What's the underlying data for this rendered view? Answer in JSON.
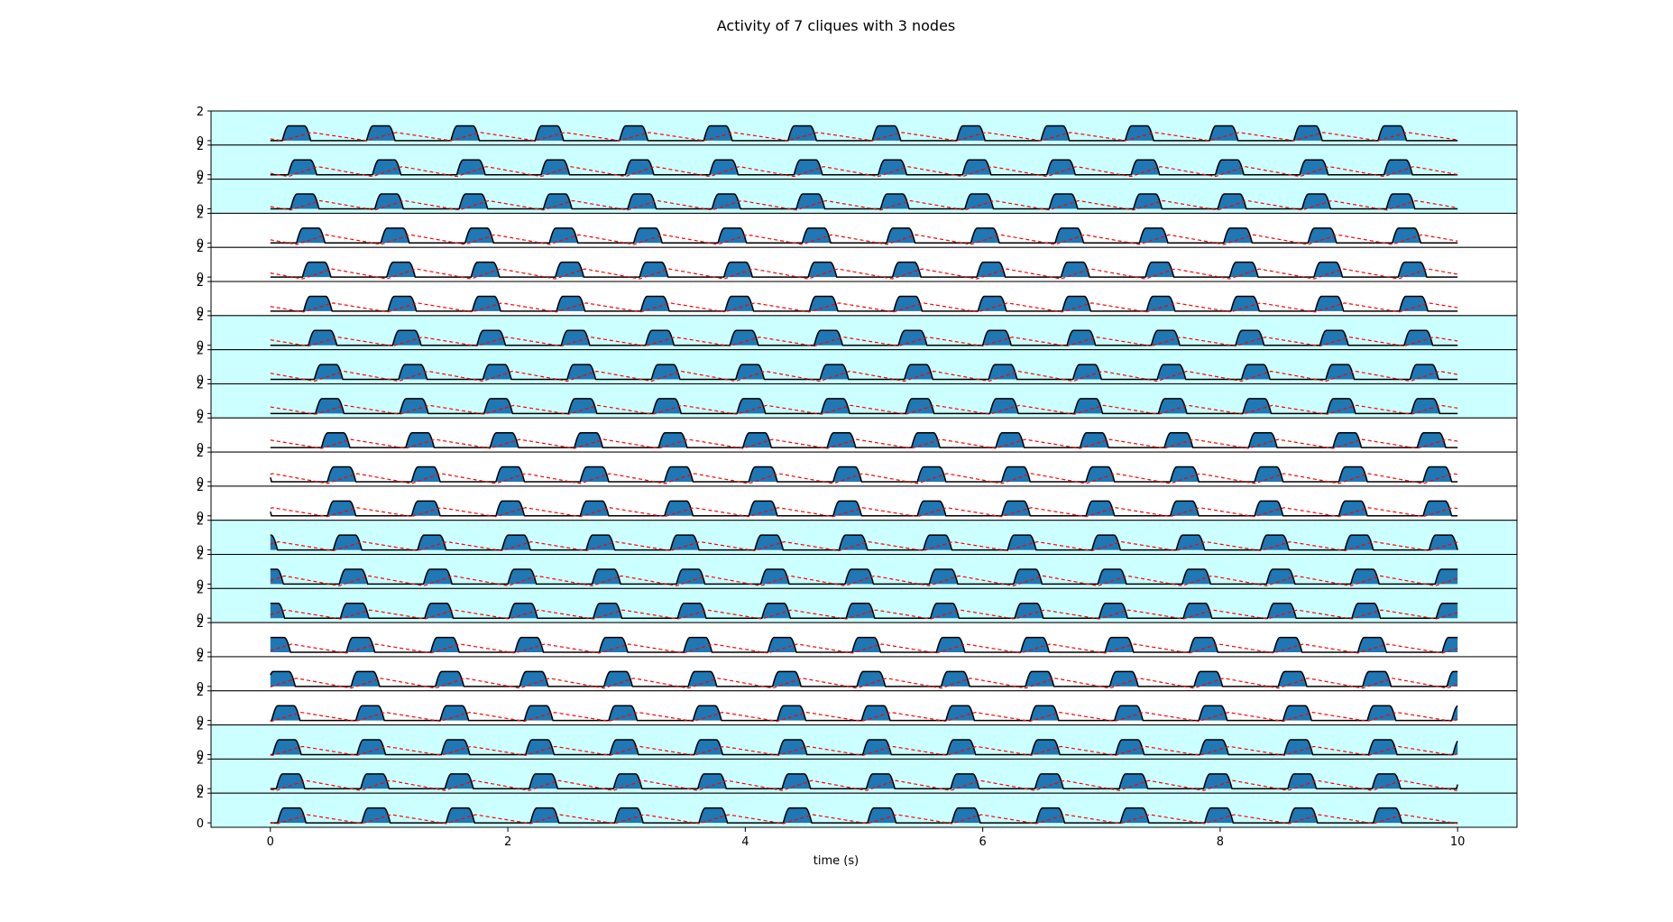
{
  "chart_data": {
    "type": "line",
    "title": "Activity of 7 cliques with 3 nodes",
    "xlabel": "time (s)",
    "ylabel": "",
    "xlim": [
      -0.5,
      10.5
    ],
    "ylim": [
      -0.3,
      2.0
    ],
    "x_ticks": [
      0,
      2,
      4,
      6,
      8,
      10
    ],
    "y_ticks": [
      0,
      2
    ],
    "grid": false,
    "legend": "none",
    "colors": {
      "highlight_background": "#ccffff",
      "plain_background": "#ffffff",
      "activity_fill": "#1f77b4",
      "activity_line": "#000000",
      "reference_line": "#ff0000"
    },
    "pulse": {
      "period_s": 0.71,
      "width_s": 0.24,
      "amplitude": 1.0,
      "rise_fraction": 0.45
    },
    "panels": [
      {
        "index": 0,
        "highlighted": true,
        "first_onset_s": 0.1,
        "trough": 0.0
      },
      {
        "index": 1,
        "highlighted": true,
        "first_onset_s": 0.15,
        "trough": -0.12
      },
      {
        "index": 2,
        "highlighted": true,
        "first_onset_s": 0.17,
        "trough": -0.08
      },
      {
        "index": 3,
        "highlighted": false,
        "first_onset_s": 0.22,
        "trough": -0.1
      },
      {
        "index": 4,
        "highlighted": false,
        "first_onset_s": 0.27,
        "trough": -0.12
      },
      {
        "index": 5,
        "highlighted": false,
        "first_onset_s": 0.28,
        "trough": -0.05
      },
      {
        "index": 6,
        "highlighted": true,
        "first_onset_s": 0.32,
        "trough": -0.05
      },
      {
        "index": 7,
        "highlighted": true,
        "first_onset_s": 0.37,
        "trough": -0.12
      },
      {
        "index": 8,
        "highlighted": true,
        "first_onset_s": 0.38,
        "trough": -0.05
      },
      {
        "index": 9,
        "highlighted": false,
        "first_onset_s": 0.43,
        "trough": -0.05
      },
      {
        "index": 10,
        "highlighted": false,
        "first_onset_s": 0.48,
        "trough": -0.12
      },
      {
        "index": 11,
        "highlighted": false,
        "first_onset_s": 0.48,
        "trough": -0.05
      },
      {
        "index": 12,
        "highlighted": true,
        "first_onset_s": 0.53,
        "trough": -0.05
      },
      {
        "index": 13,
        "highlighted": true,
        "first_onset_s": 0.58,
        "trough": -0.12
      },
      {
        "index": 14,
        "highlighted": true,
        "first_onset_s": 0.59,
        "trough": -0.05
      },
      {
        "index": 15,
        "highlighted": false,
        "first_onset_s": 0.64,
        "trough": -0.05
      },
      {
        "index": 16,
        "highlighted": false,
        "first_onset_s": 0.68,
        "trough": -0.12
      },
      {
        "index": 17,
        "highlighted": false,
        "first_onset_s": 0.01,
        "trough": -0.05
      },
      {
        "index": 18,
        "highlighted": true,
        "first_onset_s": 0.02,
        "trough": -0.05
      },
      {
        "index": 19,
        "highlighted": true,
        "first_onset_s": 0.05,
        "trough": -0.12
      },
      {
        "index": 20,
        "highlighted": true,
        "first_onset_s": 0.06,
        "trough": -0.05
      }
    ]
  }
}
